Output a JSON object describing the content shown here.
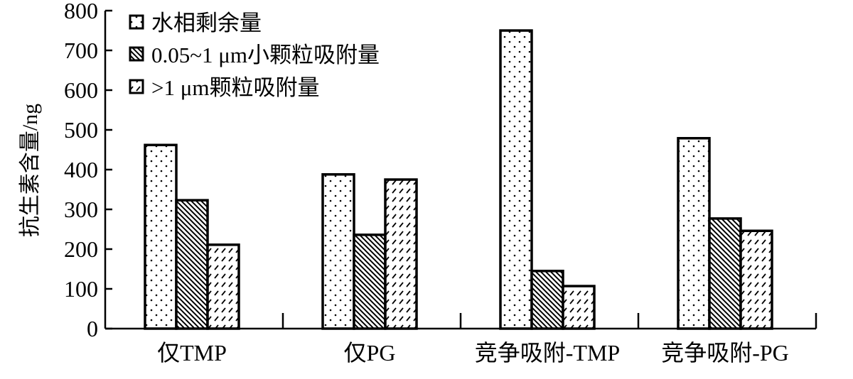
{
  "chart_data": {
    "type": "bar",
    "title": "",
    "xlabel": "",
    "ylabel": "抗生素含量/ng",
    "ylim": [
      0,
      800
    ],
    "yticks": [
      0,
      100,
      200,
      300,
      400,
      500,
      600,
      700,
      800
    ],
    "grid": false,
    "legend_position": "top-left",
    "categories": [
      "仅TMP",
      "仅PG",
      "竞争吸附-TMP",
      "竞争吸附-PG"
    ],
    "series": [
      {
        "name": "水相剩余量",
        "pattern": "dots",
        "values": [
          462,
          388,
          750,
          479
        ]
      },
      {
        "name": "0.05~1 μm小颗粒吸附量",
        "pattern": "diagonal-hatch",
        "values": [
          323,
          236,
          145,
          277
        ]
      },
      {
        "name": ">1 μm颗粒吸附量",
        "pattern": "dashed-hatch",
        "values": [
          211,
          375,
          107,
          246
        ]
      }
    ],
    "colors": {
      "stroke": "#000000",
      "fill": "#ffffff"
    }
  }
}
